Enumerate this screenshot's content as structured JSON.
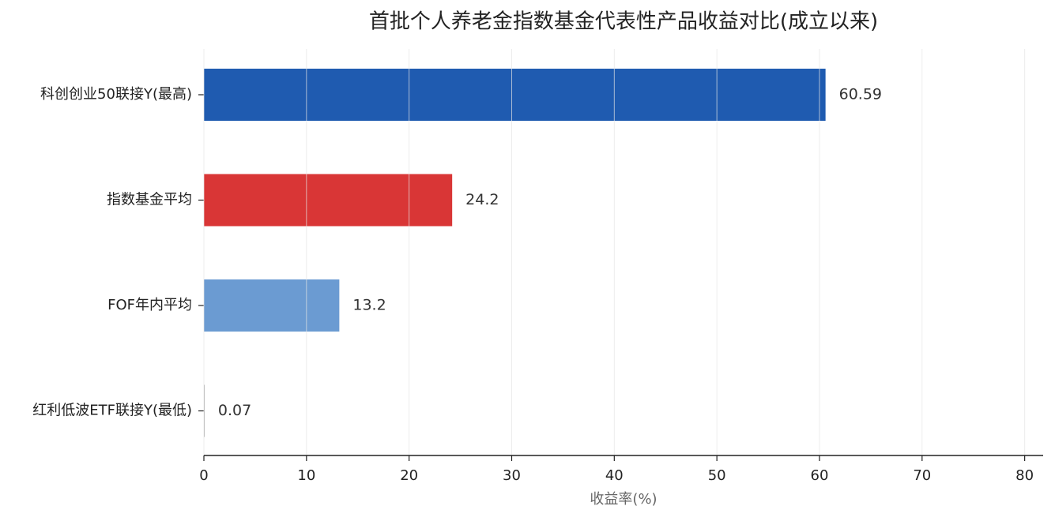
{
  "chart_data": {
    "type": "barh",
    "title": "首批个人养老金指数基金代表性产品收益对比(成立以来)",
    "categories": [
      "科创创业50联接Y(最高)",
      "指数基金平均",
      "FOF年内平均",
      "红利低波ETF联接Y(最低)"
    ],
    "values": [
      60.59,
      24.2,
      13.2,
      0.07
    ],
    "colors": [
      "#1f5bb0",
      "#d93636",
      "#6b9bd2",
      "#9e9e9e"
    ],
    "xlabel": "收益率(%)",
    "xlim": [
      0,
      81.8
    ],
    "xticks": [
      0,
      10,
      20,
      30,
      40,
      50,
      60,
      70,
      80
    ],
    "grid": true
  }
}
